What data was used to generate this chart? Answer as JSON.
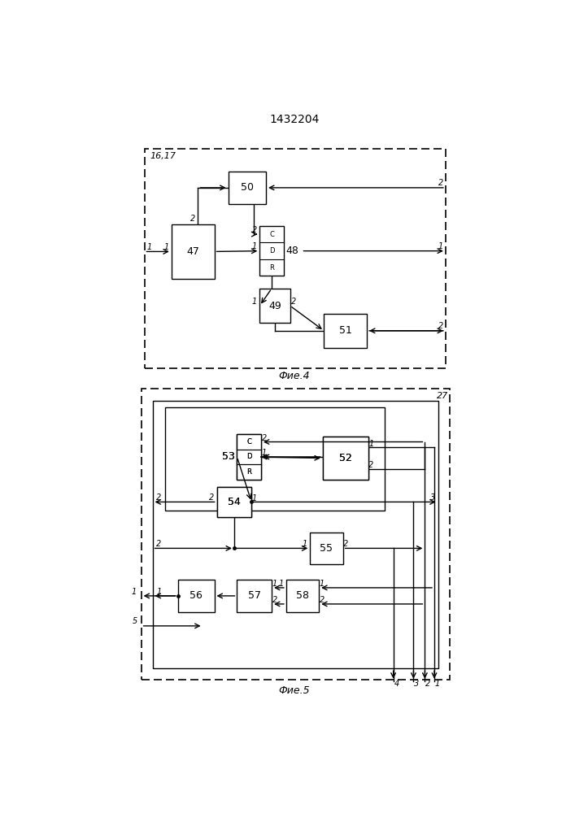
{
  "title": "1432204",
  "fig4_caption": "Фие.4",
  "fig5_caption": "Фие.5",
  "bg": "#ffffff",
  "lc": "#000000"
}
